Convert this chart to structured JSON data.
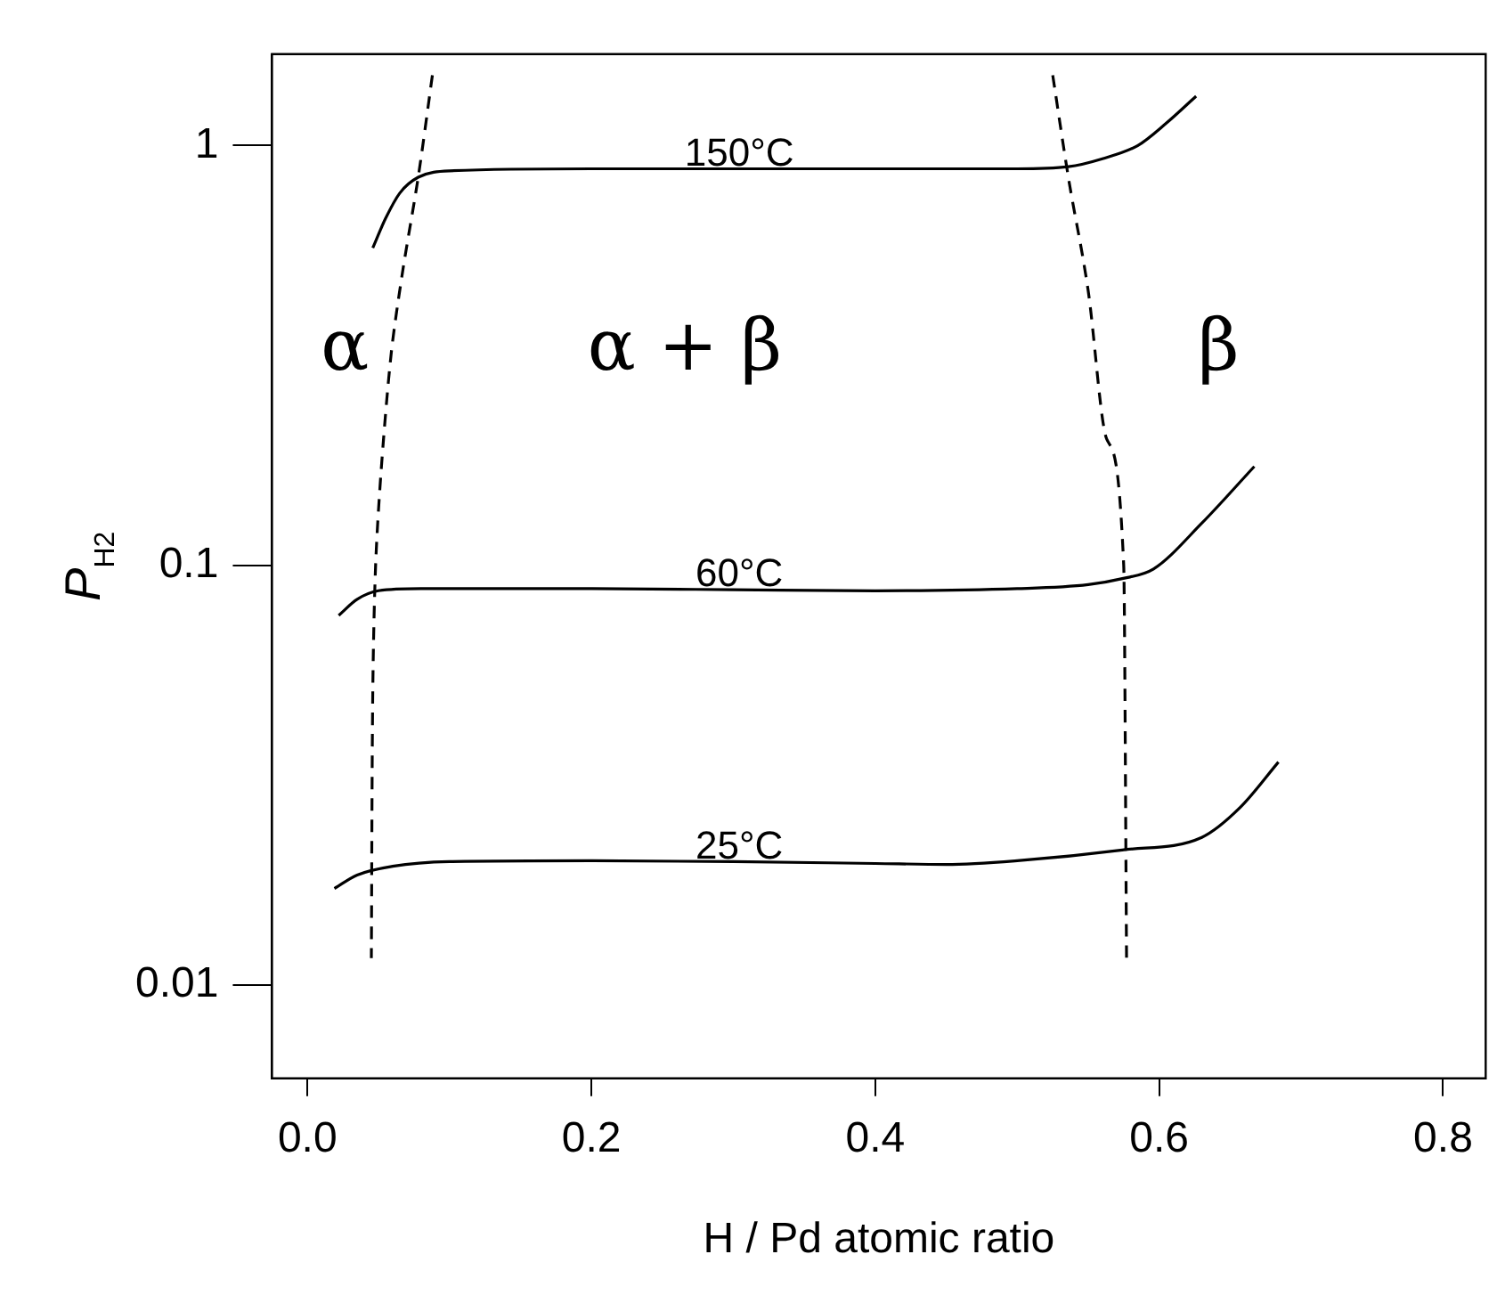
{
  "chart_data": {
    "type": "line",
    "xlabel": "H / Pd atomic ratio",
    "ylabel": "P$_{H2}$",
    "log": "y",
    "xlim": [
      -0.025,
      0.83
    ],
    "xticks": [
      {
        "value": 0,
        "label": "0.0"
      },
      0.2,
      0.4,
      0.6,
      0.8
    ],
    "ylim": [
      0.006,
      1.65
    ],
    "yticks": [
      0.01,
      0.1,
      1
    ],
    "grid": false,
    "legend": false,
    "marker": "none",
    "series": [
      {
        "name": "150°C",
        "color": "#000000",
        "line_style": "solid",
        "x": [
          0.046,
          0.055,
          0.065,
          0.078,
          0.1,
          0.2,
          0.3,
          0.4,
          0.5,
          0.536,
          0.56,
          0.585,
          0.605,
          0.626
        ],
        "values": [
          0.57,
          0.67,
          0.77,
          0.84,
          0.87,
          0.88,
          0.88,
          0.88,
          0.88,
          0.89,
          0.93,
          1.0,
          1.13,
          1.31
        ]
      },
      {
        "name": "60°C",
        "color": "#000000",
        "line_style": "solid",
        "x": [
          0.022,
          0.035,
          0.05,
          0.08,
          0.2,
          0.3,
          0.4,
          0.5,
          0.55,
          0.574,
          0.596,
          0.63,
          0.667
        ],
        "values": [
          0.076,
          0.083,
          0.087,
          0.088,
          0.088,
          0.0875,
          0.087,
          0.088,
          0.09,
          0.093,
          0.098,
          0.126,
          0.172
        ]
      },
      {
        "name": "25°C",
        "color": "#000000",
        "line_style": "solid",
        "x": [
          0.019,
          0.035,
          0.06,
          0.1,
          0.2,
          0.3,
          0.4,
          0.45,
          0.5,
          0.574,
          0.63,
          0.657,
          0.684
        ],
        "values": [
          0.017,
          0.0183,
          0.0192,
          0.0197,
          0.0198,
          0.0197,
          0.0195,
          0.0194,
          0.0198,
          0.021,
          0.0225,
          0.0265,
          0.034
        ]
      },
      {
        "color": "#000000",
        "line_style": "dashed",
        "x": [
          0.088,
          0.078,
          0.067,
          0.059,
          0.052,
          0.048,
          0.046,
          0.045
        ],
        "values": [
          1.47,
          0.84,
          0.5,
          0.32,
          0.17,
          0.1,
          0.05,
          0.0116
        ]
      },
      {
        "color": "#000000",
        "line_style": "dashed",
        "x": [
          0.525,
          0.536,
          0.55,
          0.563,
          0.575,
          0.577
        ],
        "values": [
          1.47,
          0.84,
          0.45,
          0.2,
          0.1,
          0.0116
        ]
      }
    ],
    "annotations": [
      "α",
      "α + β",
      "β"
    ]
  }
}
